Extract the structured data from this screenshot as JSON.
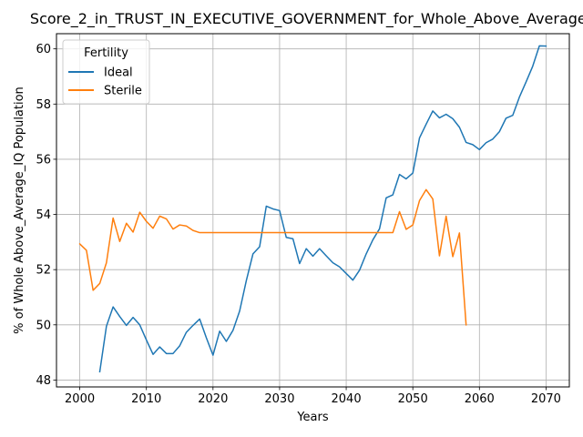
{
  "chart_data": {
    "type": "line",
    "title": "Score_2_in_TRUST_IN_EXECUTIVE_GOVERNMENT_for_Whole_Above_Average_IQ",
    "xlabel": "Years",
    "ylabel": "% of Whole Above_Average_IQ Population",
    "xlim": [
      1996.5,
      2073.5
    ],
    "ylim": [
      47.75,
      60.55
    ],
    "xticks": [
      2000,
      2010,
      2020,
      2030,
      2040,
      2050,
      2060,
      2070
    ],
    "yticks": [
      48,
      50,
      52,
      54,
      56,
      58,
      60
    ],
    "grid": true,
    "legend": {
      "title": "Fertility",
      "position": "top-left"
    },
    "series": [
      {
        "name": "Ideal",
        "color": "#1f77b4",
        "x": [
          2003,
          2004,
          2005,
          2006,
          2007,
          2008,
          2009,
          2010,
          2011,
          2012,
          2013,
          2014,
          2015,
          2016,
          2017,
          2018,
          2019,
          2020,
          2021,
          2022,
          2023,
          2024,
          2025,
          2026,
          2027,
          2028,
          2029,
          2030,
          2031,
          2032,
          2033,
          2034,
          2035,
          2036,
          2037,
          2038,
          2039,
          2040,
          2041,
          2042,
          2043,
          2044,
          2045,
          2046,
          2047,
          2048,
          2049,
          2050,
          2051,
          2052,
          2053,
          2054,
          2055,
          2056,
          2057,
          2058,
          2059,
          2060,
          2061,
          2062,
          2063,
          2064,
          2065,
          2066,
          2067,
          2068,
          2069,
          2070
        ],
        "y": [
          48.3,
          49.95,
          50.65,
          50.3,
          49.98,
          50.27,
          50.0,
          49.45,
          48.93,
          49.2,
          48.96,
          48.96,
          49.24,
          49.73,
          49.98,
          50.21,
          49.53,
          48.9,
          49.77,
          49.4,
          49.8,
          50.5,
          51.6,
          52.57,
          52.83,
          54.3,
          54.2,
          54.14,
          53.17,
          53.12,
          52.22,
          52.76,
          52.49,
          52.76,
          52.5,
          52.25,
          52.1,
          51.86,
          51.62,
          51.98,
          52.57,
          53.08,
          53.48,
          54.6,
          54.71,
          55.45,
          55.29,
          55.5,
          56.77,
          57.27,
          57.75,
          57.5,
          57.63,
          57.47,
          57.16,
          56.61,
          56.53,
          56.35,
          56.6,
          56.73,
          57.0,
          57.49,
          57.59,
          58.25,
          58.8,
          59.37,
          60.11,
          60.1
        ]
      },
      {
        "name": "Sterile",
        "color": "#ff7f0e",
        "x": [
          2000,
          2001,
          2002,
          2003,
          2004,
          2005,
          2006,
          2007,
          2008,
          2009,
          2010,
          2011,
          2012,
          2013,
          2014,
          2015,
          2016,
          2017,
          2018,
          2019,
          2020,
          2021,
          2022,
          2023,
          2024,
          2025,
          2026,
          2027,
          2028,
          2029,
          2030,
          2031,
          2032,
          2033,
          2034,
          2035,
          2036,
          2037,
          2038,
          2039,
          2040,
          2041,
          2042,
          2043,
          2044,
          2045,
          2046,
          2047,
          2048,
          2049,
          2050,
          2051,
          2052,
          2053,
          2054,
          2055,
          2056,
          2057,
          2058
        ],
        "y": [
          52.93,
          52.7,
          51.25,
          51.5,
          52.25,
          53.87,
          53.02,
          53.68,
          53.36,
          54.08,
          53.75,
          53.5,
          53.94,
          53.84,
          53.47,
          53.62,
          53.58,
          53.42,
          53.34,
          53.34,
          53.34,
          53.34,
          53.34,
          53.34,
          53.34,
          53.34,
          53.34,
          53.34,
          53.34,
          53.34,
          53.34,
          53.34,
          53.34,
          53.34,
          53.34,
          53.34,
          53.34,
          53.34,
          53.34,
          53.34,
          53.34,
          53.34,
          53.34,
          53.34,
          53.34,
          53.34,
          53.34,
          53.34,
          54.1,
          53.46,
          53.62,
          54.5,
          54.9,
          54.56,
          52.5,
          53.94,
          52.47,
          53.33,
          50.0
        ]
      }
    ]
  }
}
